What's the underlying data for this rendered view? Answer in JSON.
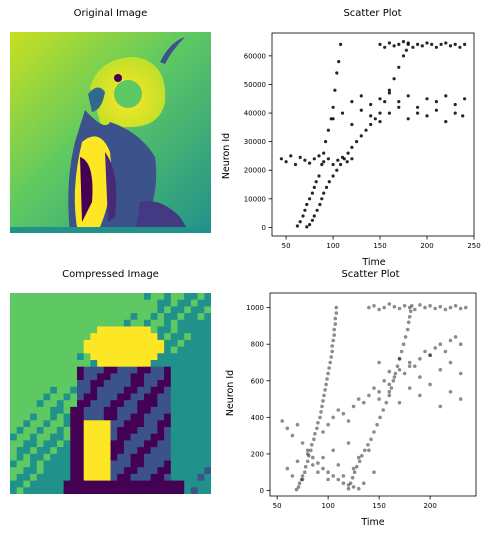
{
  "titles": {
    "original": "Original Image",
    "compressed": "Compressed Image",
    "scatter_top": "Scatter Plot",
    "scatter_bottom": "Scatter Plot"
  },
  "colors": {
    "viridis": [
      "#440154",
      "#3b528b",
      "#21918c",
      "#5ec962",
      "#fde725"
    ],
    "points": "#000000"
  },
  "chart_data": [
    {
      "type": "scatter",
      "title": "Scatter Plot",
      "xlabel": "Time",
      "ylabel": "Neuron Id",
      "xlim": [
        35,
        250
      ],
      "ylim": [
        -3000,
        68000
      ],
      "xticks": [
        50,
        100,
        150,
        200,
        250
      ],
      "yticks": [
        0,
        10000,
        20000,
        30000,
        40000,
        50000,
        60000
      ],
      "series": [
        {
          "values_note": "",
          "x": [
            62,
            65,
            68,
            70,
            72,
            75,
            78,
            80,
            82,
            85,
            88,
            90,
            92,
            95,
            98,
            100,
            102,
            104,
            106,
            108,
            72,
            75,
            78,
            80,
            83,
            86,
            88,
            90,
            93,
            96,
            100,
            104,
            108,
            112,
            116,
            120,
            125,
            130,
            135,
            140,
            145,
            150,
            155,
            160,
            165,
            170,
            175,
            178,
            180,
            150,
            155,
            160,
            165,
            170,
            175,
            180,
            185,
            190,
            195,
            200,
            205,
            210,
            215,
            220,
            225,
            230,
            235,
            240,
            45,
            50,
            55,
            60,
            65,
            70,
            75,
            80,
            85,
            90,
            95,
            100,
            105,
            110,
            115,
            120,
            120,
            130,
            140,
            150,
            160,
            170,
            180,
            190,
            200,
            210,
            220,
            230,
            240,
            100,
            110,
            120,
            130,
            140,
            150,
            160,
            170,
            180,
            190,
            200,
            210,
            220,
            230,
            238
          ],
          "y": [
            500,
            2000,
            4000,
            6000,
            8000,
            10000,
            12000,
            14000,
            16000,
            18000,
            22000,
            26000,
            30000,
            34000,
            38000,
            42000,
            48000,
            54000,
            58000,
            64000,
            200,
            1000,
            2500,
            4000,
            6000,
            8000,
            10000,
            12000,
            14000,
            16000,
            18000,
            20000,
            22000,
            24000,
            26000,
            28000,
            30000,
            32000,
            34000,
            36000,
            38000,
            40000,
            44000,
            48000,
            52000,
            56000,
            60000,
            62000,
            64000,
            64000,
            63000,
            64500,
            63500,
            64000,
            65000,
            64500,
            63000,
            64000,
            63500,
            64500,
            64000,
            63000,
            64000,
            64500,
            63500,
            64000,
            63000,
            64000,
            24000,
            23000,
            25000,
            22000,
            24500,
            23500,
            22500,
            24000,
            25000,
            23000,
            24000,
            22000,
            23500,
            24500,
            23000,
            24000,
            44000,
            46000,
            43000,
            45000,
            47000,
            44000,
            46000,
            42000,
            45000,
            44000,
            46000,
            43000,
            45000,
            38000,
            40000,
            36000,
            41000,
            39000,
            37000,
            40000,
            42000,
            38000,
            40000,
            39000,
            41000,
            37000,
            40000,
            39000
          ]
        }
      ]
    },
    {
      "type": "scatter",
      "title": "Scatter Plot",
      "xlabel": "Time",
      "ylabel": "Neuron Id",
      "xlim": [
        43,
        245
      ],
      "ylim": [
        -30,
        1080
      ],
      "xticks": [
        50,
        100,
        150,
        200
      ],
      "yticks": [
        0,
        200,
        400,
        600,
        800,
        1000
      ],
      "series": [
        {
          "x": [
            108,
            108,
            107,
            107,
            106,
            106,
            105,
            104,
            104,
            103,
            102,
            101,
            100,
            99,
            98,
            97,
            96,
            95,
            94,
            93,
            92,
            90,
            89,
            87,
            86,
            84,
            83,
            81,
            80,
            78,
            77,
            75,
            74,
            72,
            71,
            69,
            120,
            122,
            124,
            126,
            128,
            131,
            133,
            136,
            139,
            142,
            145,
            148,
            151,
            154,
            157,
            160,
            162,
            164,
            166,
            168,
            170,
            172,
            174,
            176,
            178,
            179,
            180,
            181,
            182,
            140,
            145,
            150,
            155,
            160,
            165,
            170,
            175,
            180,
            185,
            190,
            195,
            200,
            205,
            210,
            215,
            220,
            225,
            230,
            235,
            55,
            60,
            65,
            70,
            75,
            80,
            85,
            90,
            95,
            100,
            105,
            110,
            115,
            120,
            125,
            130,
            150,
            160,
            170,
            180,
            190,
            200,
            210,
            220,
            230,
            150,
            160,
            170,
            180,
            190,
            200,
            210,
            220,
            230,
            60,
            65,
            70,
            75,
            80,
            85,
            90,
            95,
            100,
            105,
            110,
            115,
            120,
            125,
            130,
            135,
            140,
            145,
            95,
            100,
            105,
            110,
            115,
            120,
            125,
            130,
            135,
            140,
            145,
            150,
            155,
            160,
            165,
            170,
            175,
            180,
            185,
            190,
            195,
            200,
            205,
            210,
            215,
            220,
            225,
            230
          ],
          "y": [
            1000,
            970,
            940,
            910,
            880,
            850,
            820,
            790,
            760,
            730,
            700,
            670,
            640,
            610,
            580,
            550,
            520,
            490,
            460,
            430,
            400,
            370,
            340,
            310,
            280,
            250,
            220,
            190,
            160,
            130,
            100,
            80,
            60,
            40,
            20,
            5,
            10,
            40,
            70,
            100,
            130,
            160,
            190,
            220,
            250,
            280,
            320,
            360,
            400,
            440,
            480,
            520,
            560,
            600,
            640,
            680,
            720,
            760,
            800,
            840,
            880,
            920,
            950,
            980,
            1010,
            1000,
            1010,
            990,
            1000,
            1020,
            1005,
            995,
            1010,
            1000,
            990,
            1015,
            1000,
            1010,
            995,
            1005,
            990,
            1000,
            1010,
            995,
            1000,
            380,
            340,
            300,
            360,
            260,
            220,
            180,
            150,
            120,
            100,
            80,
            60,
            40,
            30,
            20,
            10,
            700,
            650,
            720,
            680,
            620,
            740,
            660,
            700,
            640,
            500,
            540,
            480,
            560,
            520,
            580,
            460,
            540,
            500,
            120,
            80,
            160,
            60,
            200,
            140,
            100,
            180,
            60,
            220,
            140,
            80,
            260,
            120,
            180,
            40,
            220,
            100,
            320,
            360,
            400,
            440,
            420,
            380,
            460,
            500,
            480,
            520,
            560,
            540,
            600,
            580,
            620,
            660,
            640,
            700,
            680,
            720,
            760,
            740,
            780,
            800,
            760,
            820,
            840,
            800
          ]
        }
      ]
    }
  ]
}
